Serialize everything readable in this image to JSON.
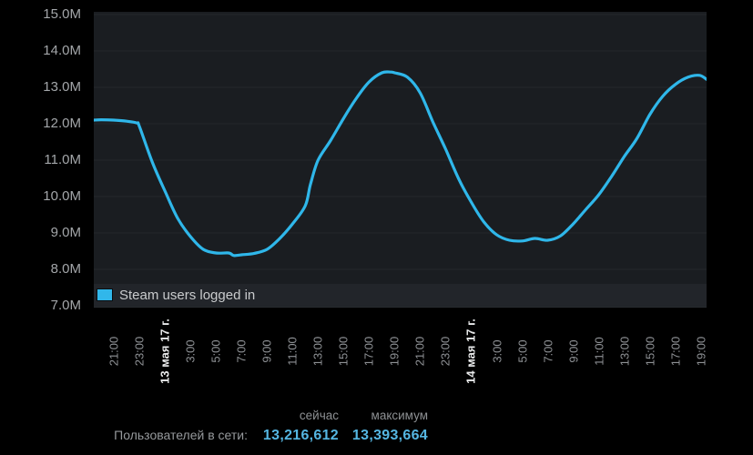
{
  "colors": {
    "background": "#000000",
    "plot_background": "#1a1d21",
    "legend_band": "#22252a",
    "gridline": "#24272c",
    "line": "#2fb7ea",
    "swatch": "#31b7ea",
    "axis_text": "#8f9296",
    "date_text": "#e9eaeb",
    "stat_number": "#55b6e2"
  },
  "legend": {
    "swatch_icon": "series-color-swatch",
    "label": "Steam users logged in"
  },
  "stats": {
    "now_header": "сейчас",
    "max_header": "максимум",
    "row_label": "Пользователей в сети:",
    "now_value": "13,216,612",
    "max_value": "13,393,664"
  },
  "chart_data": {
    "type": "line",
    "title": "",
    "units": "users online (millions)",
    "legend_position": "bottom-left inside plot",
    "grid": "horizontal only",
    "ylim": [
      7,
      15
    ],
    "y_ticks": [
      {
        "label": "15.0M",
        "value": 15
      },
      {
        "label": "14.0M",
        "value": 14
      },
      {
        "label": "13.0M",
        "value": 13
      },
      {
        "label": "12.0M",
        "value": 12
      },
      {
        "label": "11.0M",
        "value": 11
      },
      {
        "label": "10.0M",
        "value": 10
      },
      {
        "label": "9.0M",
        "value": 9
      },
      {
        "label": "8.0M",
        "value": 8
      },
      {
        "label": "7.0M",
        "value": 7
      }
    ],
    "x_domain_hours": [
      19.42,
      67.45
    ],
    "x_ticks": [
      {
        "label": "21:00",
        "t": 21,
        "is_date": false
      },
      {
        "label": "23:00",
        "t": 23,
        "is_date": false
      },
      {
        "label": "13 мая 17 г.",
        "t": 25,
        "is_date": true
      },
      {
        "label": "3:00",
        "t": 27,
        "is_date": false
      },
      {
        "label": "5:00",
        "t": 29,
        "is_date": false
      },
      {
        "label": "7:00",
        "t": 31,
        "is_date": false
      },
      {
        "label": "9:00",
        "t": 33,
        "is_date": false
      },
      {
        "label": "11:00",
        "t": 35,
        "is_date": false
      },
      {
        "label": "13:00",
        "t": 37,
        "is_date": false
      },
      {
        "label": "15:00",
        "t": 39,
        "is_date": false
      },
      {
        "label": "17:00",
        "t": 41,
        "is_date": false
      },
      {
        "label": "19:00",
        "t": 43,
        "is_date": false
      },
      {
        "label": "21:00",
        "t": 45,
        "is_date": false
      },
      {
        "label": "23:00",
        "t": 47,
        "is_date": false
      },
      {
        "label": "14 мая 17 г.",
        "t": 49,
        "is_date": true
      },
      {
        "label": "3:00",
        "t": 51,
        "is_date": false
      },
      {
        "label": "5:00",
        "t": 53,
        "is_date": false
      },
      {
        "label": "7:00",
        "t": 55,
        "is_date": false
      },
      {
        "label": "9:00",
        "t": 57,
        "is_date": false
      },
      {
        "label": "11:00",
        "t": 59,
        "is_date": false
      },
      {
        "label": "13:00",
        "t": 61,
        "is_date": false
      },
      {
        "label": "15:00",
        "t": 63,
        "is_date": false
      },
      {
        "label": "17:00",
        "t": 65,
        "is_date": false
      },
      {
        "label": "19:00",
        "t": 67,
        "is_date": false
      }
    ],
    "series": [
      {
        "name": "Steam users logged in",
        "color": "#2fb7ea",
        "points": [
          [
            19.42,
            12.1
          ],
          [
            20,
            12.11
          ],
          [
            21,
            12.1
          ],
          [
            22,
            12.07
          ],
          [
            22.8,
            12.02
          ],
          [
            23,
            11.92
          ],
          [
            24,
            10.95
          ],
          [
            25,
            10.15
          ],
          [
            26,
            9.4
          ],
          [
            27,
            8.9
          ],
          [
            28,
            8.55
          ],
          [
            29,
            8.45
          ],
          [
            30,
            8.45
          ],
          [
            30.4,
            8.38
          ],
          [
            31,
            8.4
          ],
          [
            32,
            8.44
          ],
          [
            33,
            8.55
          ],
          [
            34,
            8.85
          ],
          [
            35,
            9.25
          ],
          [
            36,
            9.75
          ],
          [
            36.4,
            10.33
          ],
          [
            37,
            11.0
          ],
          [
            38,
            11.55
          ],
          [
            39,
            12.15
          ],
          [
            40,
            12.7
          ],
          [
            41,
            13.15
          ],
          [
            42,
            13.4
          ],
          [
            42.7,
            13.42
          ],
          [
            43,
            13.4
          ],
          [
            44,
            13.28
          ],
          [
            45,
            12.85
          ],
          [
            46,
            12.05
          ],
          [
            47,
            11.3
          ],
          [
            48,
            10.5
          ],
          [
            49,
            9.85
          ],
          [
            50,
            9.3
          ],
          [
            51,
            8.95
          ],
          [
            52,
            8.8
          ],
          [
            53,
            8.78
          ],
          [
            54,
            8.85
          ],
          [
            55,
            8.8
          ],
          [
            56,
            8.92
          ],
          [
            57,
            9.25
          ],
          [
            58,
            9.65
          ],
          [
            59,
            10.05
          ],
          [
            60,
            10.55
          ],
          [
            61,
            11.1
          ],
          [
            62,
            11.6
          ],
          [
            63,
            12.25
          ],
          [
            64,
            12.75
          ],
          [
            65,
            13.08
          ],
          [
            66,
            13.28
          ],
          [
            66.9,
            13.33
          ],
          [
            67.45,
            13.22
          ]
        ]
      }
    ]
  }
}
